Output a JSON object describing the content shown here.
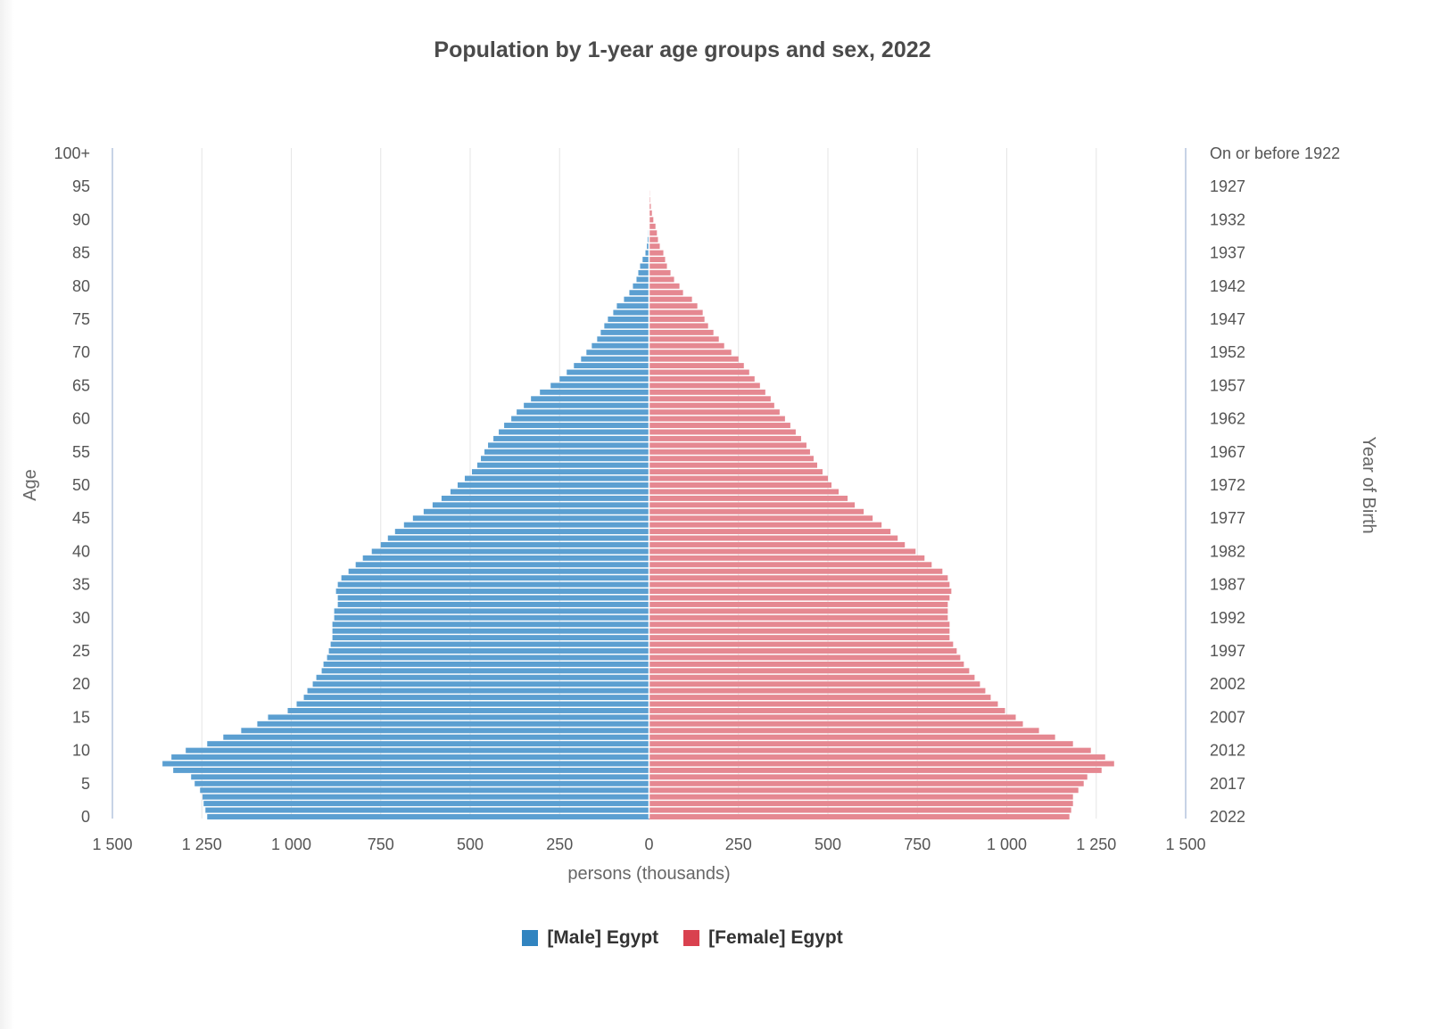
{
  "chart_data": {
    "type": "bar",
    "orientation": "horizontal-pyramid",
    "title": "Population by 1-year age groups and sex, 2022",
    "xlabel": "persons (thousands)",
    "ylabel": "Age",
    "ylabel_right": "Year of Birth",
    "xlim": [
      -1500,
      1500
    ],
    "x_ticks": [
      -1500,
      -1250,
      -1000,
      -750,
      -500,
      -250,
      0,
      250,
      500,
      750,
      1000,
      1250,
      1500
    ],
    "x_tick_labels": [
      "1 500",
      "1 250",
      "1 000",
      "750",
      "500",
      "250",
      "0",
      "250",
      "500",
      "750",
      "1 000",
      "1 250",
      "1 500"
    ],
    "ages": [
      0,
      1,
      2,
      3,
      4,
      5,
      6,
      7,
      8,
      9,
      10,
      11,
      12,
      13,
      14,
      15,
      16,
      17,
      18,
      19,
      20,
      21,
      22,
      23,
      24,
      25,
      26,
      27,
      28,
      29,
      30,
      31,
      32,
      33,
      34,
      35,
      36,
      37,
      38,
      39,
      40,
      41,
      42,
      43,
      44,
      45,
      46,
      47,
      48,
      49,
      50,
      51,
      52,
      53,
      54,
      55,
      56,
      57,
      58,
      59,
      60,
      61,
      62,
      63,
      64,
      65,
      66,
      67,
      68,
      69,
      70,
      71,
      72,
      73,
      74,
      75,
      76,
      77,
      78,
      79,
      80,
      81,
      82,
      83,
      84,
      85,
      86,
      87,
      88,
      89,
      90,
      91,
      92,
      93,
      94,
      95,
      96,
      97,
      98,
      99,
      100
    ],
    "left_tick_labels": [
      {
        "age": 0,
        "label": "0"
      },
      {
        "age": 5,
        "label": "5"
      },
      {
        "age": 10,
        "label": "10"
      },
      {
        "age": 15,
        "label": "15"
      },
      {
        "age": 20,
        "label": "20"
      },
      {
        "age": 25,
        "label": "25"
      },
      {
        "age": 30,
        "label": "30"
      },
      {
        "age": 35,
        "label": "35"
      },
      {
        "age": 40,
        "label": "40"
      },
      {
        "age": 45,
        "label": "45"
      },
      {
        "age": 50,
        "label": "50"
      },
      {
        "age": 55,
        "label": "55"
      },
      {
        "age": 60,
        "label": "60"
      },
      {
        "age": 65,
        "label": "65"
      },
      {
        "age": 70,
        "label": "70"
      },
      {
        "age": 75,
        "label": "75"
      },
      {
        "age": 80,
        "label": "80"
      },
      {
        "age": 85,
        "label": "85"
      },
      {
        "age": 90,
        "label": "90"
      },
      {
        "age": 95,
        "label": "95"
      },
      {
        "age": 100,
        "label": "100+"
      }
    ],
    "right_tick_labels": [
      {
        "age": 0,
        "label": "2022"
      },
      {
        "age": 5,
        "label": "2017"
      },
      {
        "age": 10,
        "label": "2012"
      },
      {
        "age": 15,
        "label": "2007"
      },
      {
        "age": 20,
        "label": "2002"
      },
      {
        "age": 25,
        "label": "1997"
      },
      {
        "age": 30,
        "label": "1992"
      },
      {
        "age": 35,
        "label": "1987"
      },
      {
        "age": 40,
        "label": "1982"
      },
      {
        "age": 45,
        "label": "1977"
      },
      {
        "age": 50,
        "label": "1972"
      },
      {
        "age": 55,
        "label": "1967"
      },
      {
        "age": 60,
        "label": "1962"
      },
      {
        "age": 65,
        "label": "1957"
      },
      {
        "age": 70,
        "label": "1952"
      },
      {
        "age": 75,
        "label": "1947"
      },
      {
        "age": 80,
        "label": "1942"
      },
      {
        "age": 85,
        "label": "1937"
      },
      {
        "age": 90,
        "label": "1932"
      },
      {
        "age": 95,
        "label": "1927"
      },
      {
        "age": 100,
        "label": "On or before 1922"
      }
    ],
    "series": [
      {
        "name": "[Male] Egypt",
        "color": "#5b9fd1",
        "values": [
          1235,
          1240,
          1245,
          1248,
          1255,
          1270,
          1280,
          1330,
          1360,
          1335,
          1295,
          1235,
          1190,
          1140,
          1095,
          1065,
          1010,
          985,
          965,
          955,
          940,
          930,
          915,
          910,
          900,
          895,
          890,
          885,
          885,
          885,
          880,
          880,
          870,
          870,
          875,
          870,
          860,
          840,
          820,
          800,
          775,
          750,
          730,
          710,
          685,
          660,
          630,
          605,
          580,
          555,
          535,
          515,
          495,
          480,
          470,
          460,
          450,
          435,
          420,
          405,
          385,
          370,
          350,
          330,
          305,
          275,
          250,
          230,
          210,
          190,
          175,
          160,
          145,
          135,
          125,
          115,
          100,
          90,
          70,
          55,
          45,
          35,
          30,
          25,
          18,
          10,
          6,
          4,
          2,
          1,
          0,
          0,
          0,
          0,
          0,
          0,
          0,
          0,
          0,
          0,
          0
        ]
      },
      {
        "name": "[Female] Egypt",
        "color": "#e58891",
        "values": [
          1175,
          1180,
          1185,
          1185,
          1200,
          1215,
          1225,
          1265,
          1300,
          1275,
          1235,
          1185,
          1135,
          1090,
          1045,
          1025,
          995,
          975,
          955,
          940,
          925,
          910,
          895,
          880,
          870,
          860,
          850,
          840,
          840,
          840,
          835,
          835,
          835,
          840,
          845,
          840,
          835,
          820,
          790,
          770,
          745,
          715,
          695,
          675,
          650,
          625,
          600,
          575,
          555,
          530,
          510,
          500,
          485,
          470,
          460,
          450,
          440,
          425,
          410,
          395,
          380,
          365,
          350,
          340,
          325,
          310,
          295,
          280,
          265,
          250,
          230,
          210,
          195,
          180,
          165,
          155,
          150,
          135,
          120,
          95,
          85,
          70,
          60,
          50,
          45,
          40,
          30,
          25,
          22,
          18,
          12,
          8,
          5,
          3,
          2,
          0,
          0,
          0,
          0,
          0,
          0
        ]
      }
    ],
    "grid": true,
    "legend_position": "bottom-center"
  },
  "legend": {
    "male_label": "[Male] Egypt",
    "female_label": "[Female] Egypt",
    "male_color": "#3184c0",
    "female_color": "#d9414f"
  }
}
